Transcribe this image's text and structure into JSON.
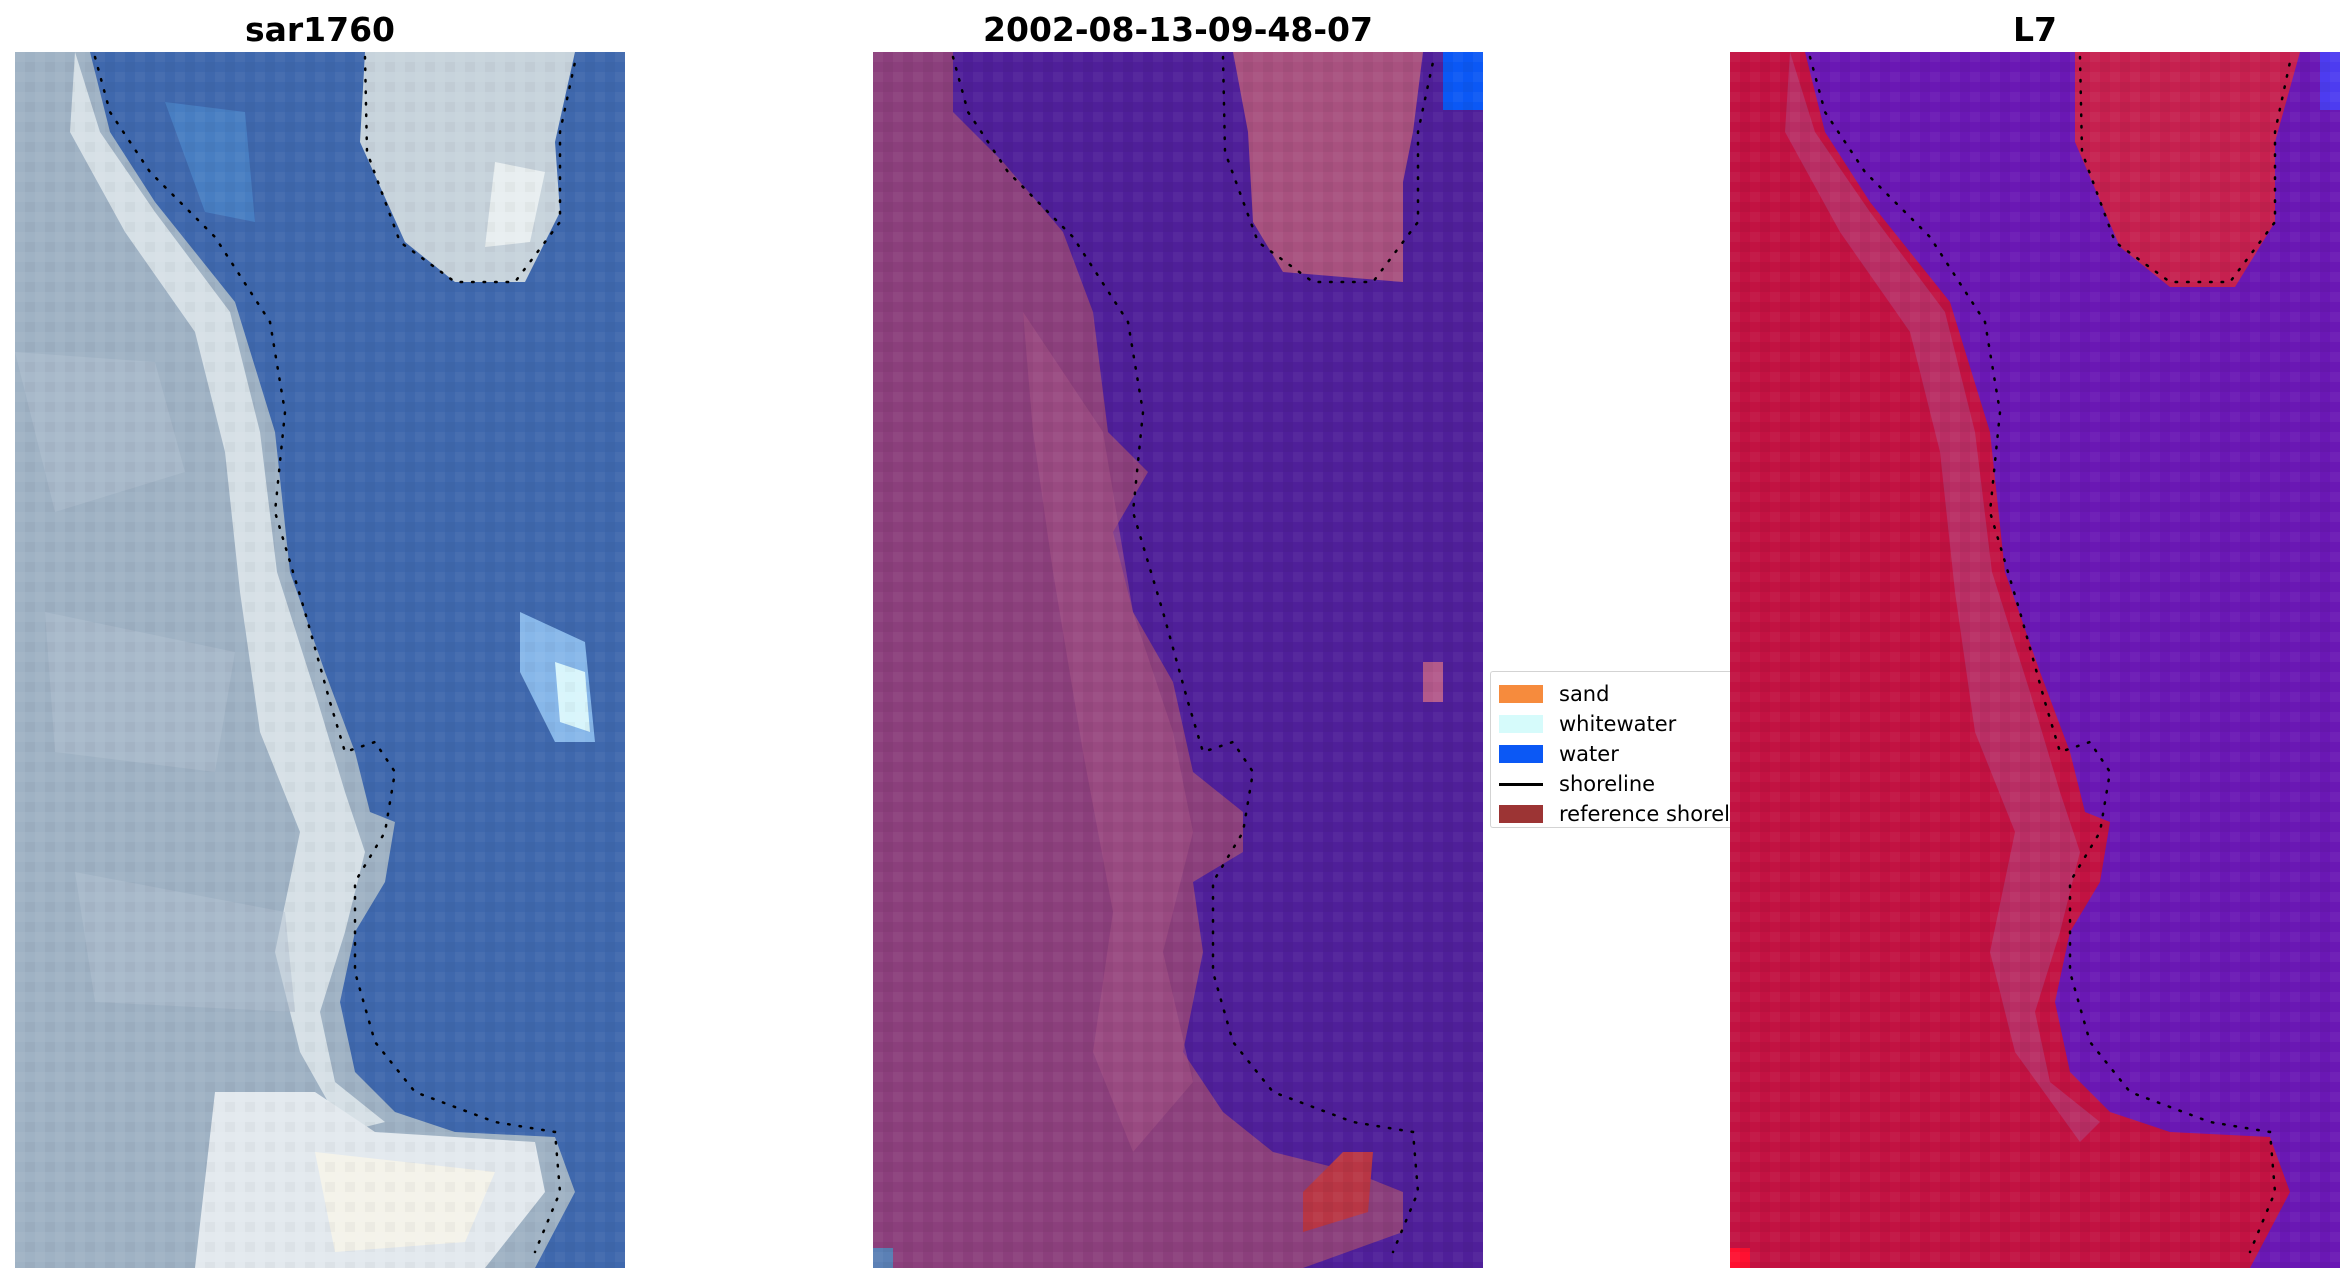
{
  "panels": [
    {
      "title": "sar1760"
    },
    {
      "title": "2002-08-13-09-48-07"
    },
    {
      "title": "L7"
    }
  ],
  "legend": {
    "items": [
      {
        "label": "sand",
        "color": "#f68b3d",
        "kind": "patch"
      },
      {
        "label": "whitewater",
        "color": "#d6fbfb",
        "kind": "patch"
      },
      {
        "label": "water",
        "color": "#0b58f5",
        "kind": "patch"
      },
      {
        "label": "shoreline",
        "color": "#000000",
        "kind": "line"
      },
      {
        "label": "reference shoreline",
        "color": "#9c3434",
        "kind": "patch"
      }
    ]
  },
  "colors": {
    "rgb_water": "#3f68ad",
    "rgb_land": "#9fb2c4",
    "rgb_surf": "#e6eef0",
    "classified_water": "#4f1f99",
    "classified_land": "#8b3f7c",
    "classified_reference_shoreline": "#b83645",
    "index_land": "#c21242",
    "index_water": "#6a18b4",
    "shoreline_marker": "#000000"
  }
}
